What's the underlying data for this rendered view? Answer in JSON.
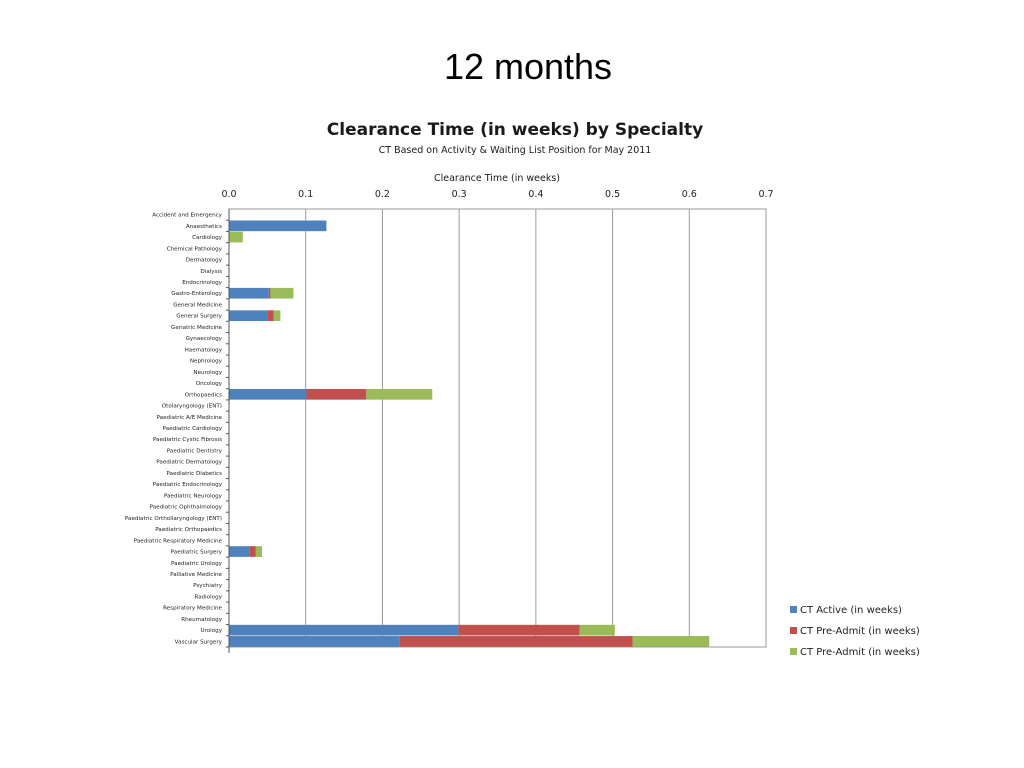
{
  "slide": {
    "title": "12 months"
  },
  "chart_data": {
    "type": "bar",
    "orientation": "horizontal",
    "stacked": true,
    "title": "Clearance Time (in weeks) by Specialty",
    "subtitle": "CT Based on Activity & Waiting List Position for May 2011",
    "xlabel": "Clearance Time (in weeks)",
    "xlim": [
      0,
      0.7
    ],
    "xticks": [
      "0.0",
      "0.1",
      "0.2",
      "0.3",
      "0.4",
      "0.5",
      "0.6",
      "0.7"
    ],
    "x_axis_position": "top",
    "grid": true,
    "legend_position": "bottom-right",
    "categories": [
      "Accident and Emergency",
      "Anaesthetics",
      "Cardiology",
      "Chemical Pathology",
      "Dermatology",
      "Dialysis",
      "Endocrinology",
      "Gastro-Enterology",
      "General Medicine",
      "General Surgery",
      "Geriatric Medicine",
      "Gynaecology",
      "Haematology",
      "Nephrology",
      "Neurology",
      "Oncology",
      "Orthopaedics",
      "Otolaryngology (ENT)",
      "Paediatric A/E Medicine",
      "Paediatric Cardiology",
      "Paediatric Cystic Fibrosis",
      "Paediatric Dentistry",
      "Paediatric Dermatology",
      "Paediatric Diabetics",
      "Paediatric Endocrinology",
      "Paediatric Neurology",
      "Paediatric Ophthalmology",
      "Paediatric Orthollaryngology (ENT)",
      "Paediatric Orthopaedics",
      "Paediatric Respiratory Medicine",
      "Paediatric Surgery",
      "Paediatric Urology",
      "Palliative Medicine",
      "Psychiatry",
      "Radiology",
      "Respiratory Medicine",
      "Rheumatology",
      "Urology",
      "Vascular Surgery"
    ],
    "series": [
      {
        "name": "CT Active (in weeks)",
        "color": "#4f81bd",
        "values": [
          0,
          0.127,
          0,
          0,
          0,
          0,
          0,
          0.052,
          0,
          0.05,
          0,
          0,
          0,
          0,
          0,
          0,
          0.101,
          0,
          0,
          0,
          0,
          0,
          0,
          0,
          0,
          0,
          0,
          0,
          0,
          0,
          0.027,
          0,
          0,
          0,
          0,
          0,
          0,
          0.299,
          0.222
        ]
      },
      {
        "name": "CT Pre-Admit (in weeks)",
        "color": "#c0504d",
        "values": [
          0,
          0,
          0,
          0,
          0,
          0,
          0,
          0.002,
          0,
          0.008,
          0,
          0,
          0,
          0,
          0,
          0,
          0.078,
          0,
          0,
          0,
          0,
          0,
          0,
          0,
          0,
          0,
          0,
          0,
          0,
          0,
          0.008,
          0,
          0,
          0,
          0,
          0,
          0,
          0.158,
          0.304
        ]
      },
      {
        "name": "CT Pre-Admit (in weeks)",
        "color": "#9bbb59",
        "values": [
          0,
          0,
          0.018,
          0,
          0,
          0,
          0,
          0.03,
          0,
          0.009,
          0,
          0,
          0,
          0,
          0,
          0,
          0.086,
          0,
          0,
          0,
          0,
          0,
          0,
          0,
          0,
          0,
          0,
          0,
          0,
          0,
          0.008,
          0,
          0,
          0,
          0,
          0,
          0,
          0.046,
          0.1
        ]
      }
    ]
  }
}
